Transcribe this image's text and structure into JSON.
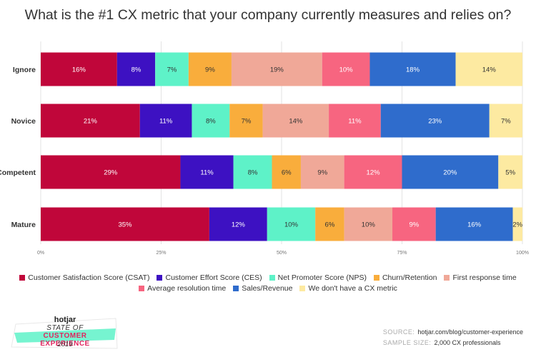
{
  "chart_data": {
    "type": "bar",
    "orientation": "horizontal",
    "stacked": true,
    "title": "What is the #1 CX metric that your company currently measures and relies on?",
    "categories": [
      "Ignore",
      "Novice",
      "Competent",
      "Mature"
    ],
    "series": [
      {
        "name": "Customer Satisfaction Score (CSAT)",
        "color": "#c0063a",
        "values": [
          16,
          21,
          29,
          35
        ]
      },
      {
        "name": "Customer Effort Score (CES)",
        "color": "#3d11c2",
        "values": [
          8,
          11,
          11,
          12
        ]
      },
      {
        "name": "Net Promoter Score (NPS)",
        "color": "#5ef2c8",
        "values": [
          7,
          8,
          8,
          10
        ]
      },
      {
        "name": "Churn/Retention",
        "color": "#f9ad3c",
        "values": [
          9,
          7,
          6,
          6
        ]
      },
      {
        "name": "First response time",
        "color": "#f0a898",
        "values": [
          19,
          14,
          9,
          10
        ]
      },
      {
        "name": "Average resolution time",
        "color": "#f76580",
        "values": [
          10,
          11,
          12,
          9
        ]
      },
      {
        "name": "Sales/Revenue",
        "color": "#2f6ccc",
        "values": [
          18,
          23,
          20,
          16
        ]
      },
      {
        "name": "We don't have a CX metric",
        "color": "#fdeaa1",
        "values": [
          14,
          7,
          5,
          2
        ]
      }
    ],
    "xlim": [
      0,
      100
    ],
    "x_ticks": [
      "0%",
      "25%",
      "50%",
      "75%",
      "100%"
    ],
    "grid": true,
    "legend_position": "bottom"
  },
  "footer": {
    "source_label": "SOURCE:",
    "source_value": "hotjar.com/blog/customer-experience",
    "sample_label": "SAMPLE SIZE:",
    "sample_value": "2,000 CX professionals"
  },
  "logo": {
    "brand": "hotjar",
    "line1": "STATE OF",
    "line2": "CUSTOMER EXPERIENCE",
    "year": "2019"
  }
}
